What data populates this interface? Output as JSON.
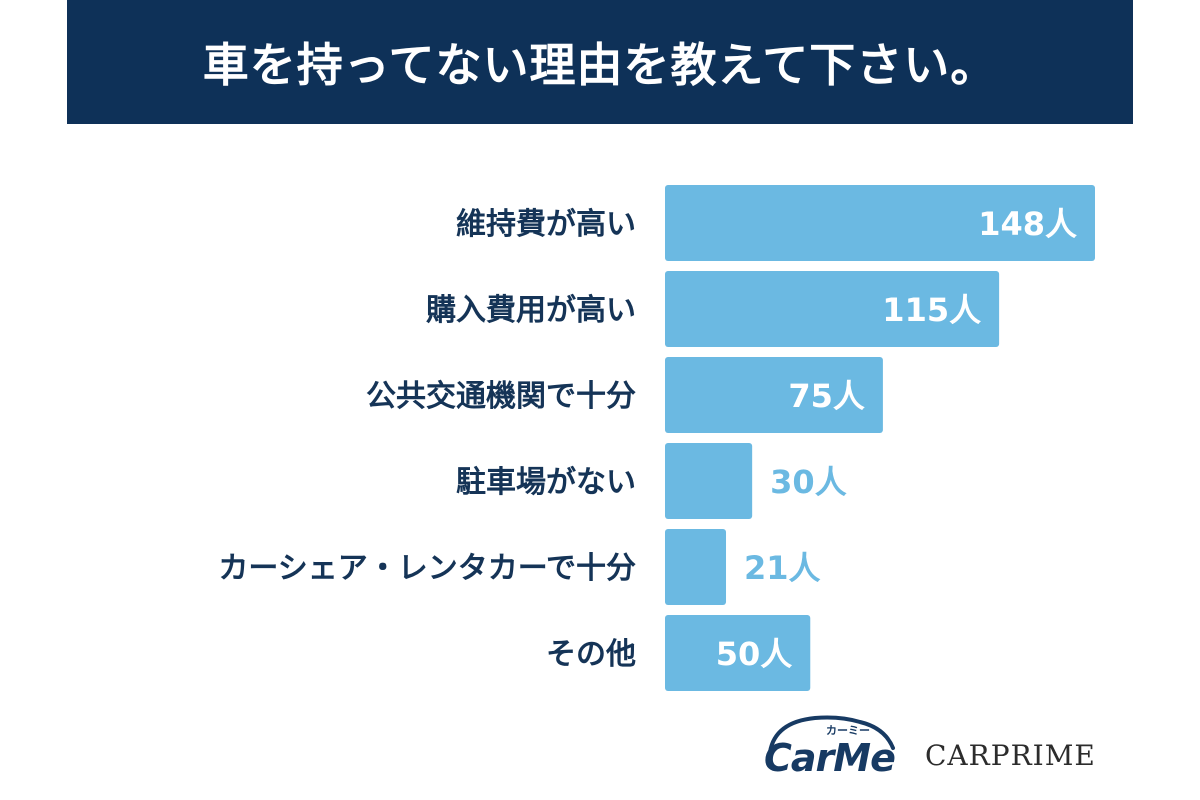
{
  "title": "車を持ってない理由を教えて下さい。",
  "chart_data": {
    "type": "bar",
    "orientation": "horizontal",
    "categories": [
      "維持費が高い",
      "購入費用が高い",
      "公共交通機関で十分",
      "駐車場がない",
      "カーシェア・レンタカーで十分",
      "その他"
    ],
    "values": [
      148,
      115,
      75,
      30,
      21,
      50
    ],
    "data_labels": [
      "148人",
      "115人",
      "75人",
      "30人",
      "21人",
      "50人"
    ],
    "unit": "人",
    "xlim": [
      0,
      148
    ],
    "grid": false,
    "bar_color": "#6bb9e2",
    "label_inside_color": "#ffffff",
    "label_outside_color": "#6bb9e2",
    "category_color": "#153457"
  },
  "banner_color": "#0e3158",
  "logos": {
    "carme": "CarMe",
    "carme_sub": "カーミー",
    "carprime": "CARPRIME"
  }
}
